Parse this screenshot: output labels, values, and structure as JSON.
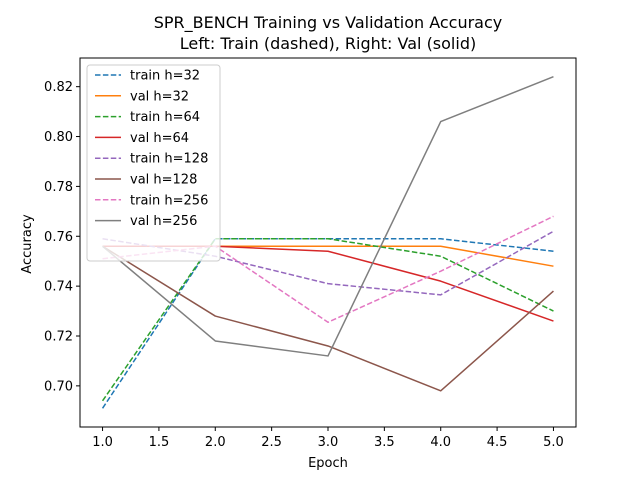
{
  "chart_data": {
    "type": "line",
    "title": "SPR_BENCH Training vs Validation Accuracy",
    "subtitle": "Left: Train (dashed), Right: Val (solid)",
    "xlabel": "Epoch",
    "ylabel": "Accuracy",
    "xlim": [
      0.8,
      5.2
    ],
    "ylim": [
      0.6835,
      0.8315
    ],
    "xticks": [
      1.0,
      1.5,
      2.0,
      2.5,
      3.0,
      3.5,
      4.0,
      4.5,
      5.0
    ],
    "xtick_labels": [
      "1.0",
      "1.5",
      "2.0",
      "2.5",
      "3.0",
      "3.5",
      "4.0",
      "4.5",
      "5.0"
    ],
    "yticks": [
      0.7,
      0.72,
      0.74,
      0.76,
      0.78,
      0.8,
      0.82
    ],
    "ytick_labels": [
      "0.70",
      "0.72",
      "0.74",
      "0.76",
      "0.78",
      "0.80",
      "0.82"
    ],
    "grid": false,
    "legend_position": "top-left",
    "x": [
      1,
      2,
      3,
      4,
      5
    ],
    "series": [
      {
        "name": "train h=32",
        "style": "dashed",
        "color": "#1f77b4",
        "values": [
          0.691,
          0.759,
          0.759,
          0.759,
          0.754
        ]
      },
      {
        "name": "val h=32",
        "style": "solid",
        "color": "#ff7f0e",
        "values": [
          0.756,
          0.756,
          0.756,
          0.756,
          0.748
        ]
      },
      {
        "name": "train h=64",
        "style": "dashed",
        "color": "#2ca02c",
        "values": [
          0.694,
          0.759,
          0.759,
          0.752,
          0.73
        ]
      },
      {
        "name": "val h=64",
        "style": "solid",
        "color": "#d62728",
        "values": [
          0.756,
          0.756,
          0.754,
          0.742,
          0.726
        ]
      },
      {
        "name": "train h=128",
        "style": "dashed",
        "color": "#9467bd",
        "values": [
          0.759,
          0.752,
          0.741,
          0.7365,
          0.762
        ]
      },
      {
        "name": "val h=128",
        "style": "solid",
        "color": "#8c564b",
        "values": [
          0.756,
          0.728,
          0.716,
          0.698,
          0.738
        ]
      },
      {
        "name": "train h=256",
        "style": "dashed",
        "color": "#e377c2",
        "values": [
          0.751,
          0.756,
          0.7255,
          0.746,
          0.768
        ]
      },
      {
        "name": "val h=256",
        "style": "solid",
        "color": "#7f7f7f",
        "values": [
          0.756,
          0.718,
          0.712,
          0.806,
          0.824
        ]
      }
    ]
  }
}
